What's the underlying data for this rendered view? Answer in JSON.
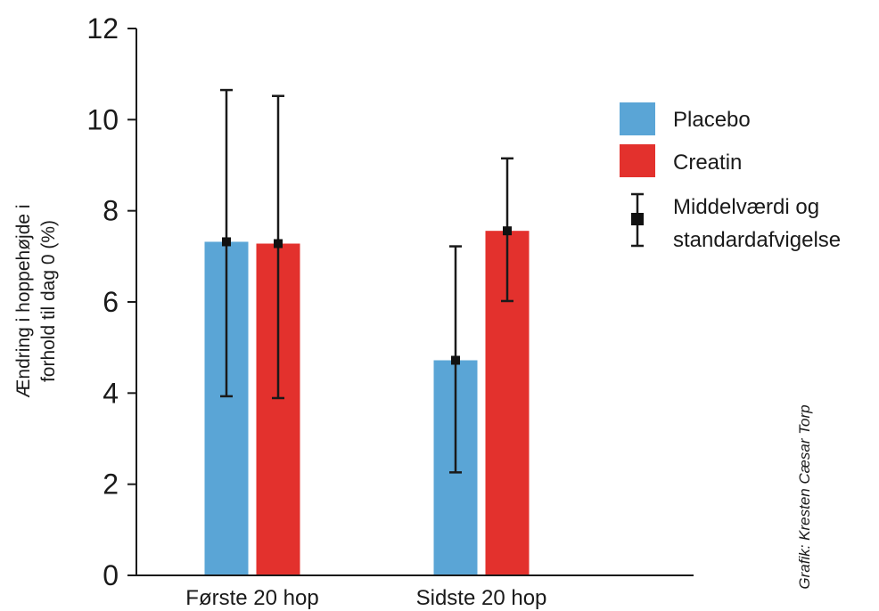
{
  "chart_data": {
    "type": "bar",
    "categories": [
      "Første 20 hop",
      "Sidste 20 hop"
    ],
    "series": [
      {
        "name": "Placebo",
        "color": "#5aa5d6",
        "values": [
          7.32,
          4.72
        ],
        "err_low": [
          3.93,
          2.26
        ],
        "err_high": [
          10.65,
          7.22
        ]
      },
      {
        "name": "Creatin",
        "color": "#e3312d",
        "values": [
          7.28,
          7.56
        ],
        "err_low": [
          3.89,
          6.02
        ],
        "err_high": [
          10.52,
          9.15
        ]
      }
    ],
    "ylabel_lines": [
      "Ændring i hoppehøjde i",
      "forhold til dag 0 (%)"
    ],
    "ylim": [
      0,
      12
    ],
    "yticks": [
      "0",
      "2",
      "4",
      "6",
      "8",
      "10",
      "12"
    ],
    "legend": {
      "position": "right",
      "items": [
        "Placebo",
        "Creatin"
      ],
      "error_item_lines": [
        "Middelværdi og",
        "standardafvigelse"
      ]
    },
    "credit": "Grafik: Kresten Cæsar Torp"
  }
}
